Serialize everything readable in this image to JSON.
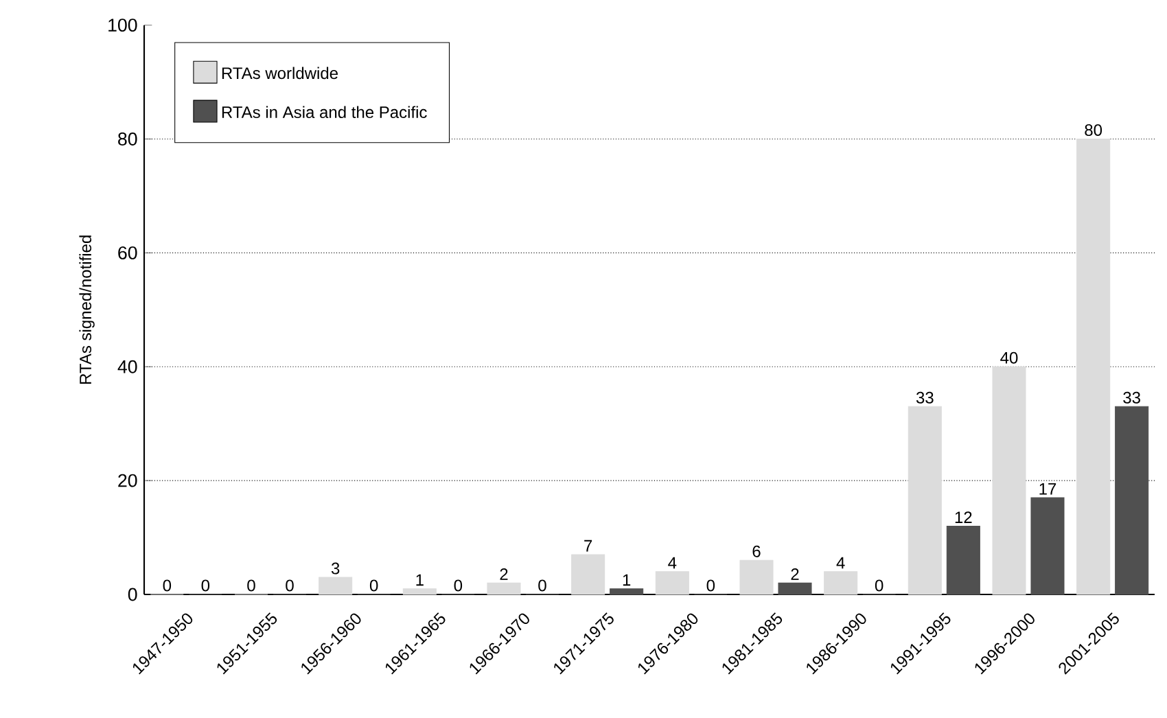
{
  "chart_data": {
    "type": "bar",
    "ylabel": "RTAs signed/notified",
    "categories": [
      "1947-1950",
      "1951-1955",
      "1956-1960",
      "1961-1965",
      "1966-1970",
      "1971-1975",
      "1976-1980",
      "1981-1985",
      "1986-1990",
      "1991-1995",
      "1996-2000",
      "2001-2005"
    ],
    "series": [
      {
        "name": "RTAs worldwide",
        "color": "#dcdcdc",
        "values": [
          0,
          0,
          3,
          1,
          2,
          7,
          4,
          6,
          4,
          33,
          40,
          80
        ]
      },
      {
        "name": "RTAs in Asia and the Pacific",
        "color": "#505050",
        "values": [
          0,
          0,
          0,
          0,
          0,
          1,
          0,
          2,
          0,
          12,
          17,
          33
        ]
      }
    ],
    "ylim": [
      0,
      100
    ],
    "yticks": [
      0,
      20,
      40,
      60,
      80,
      100
    ],
    "grid": "y",
    "legend": "top left",
    "data_labels": true
  }
}
